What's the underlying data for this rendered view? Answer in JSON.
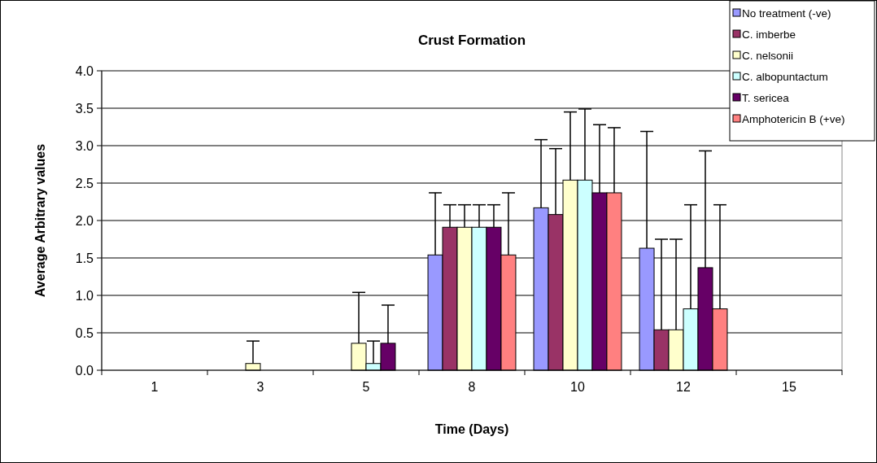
{
  "chart_data": {
    "type": "bar",
    "title": "Crust Formation",
    "xlabel": "Time (Days)",
    "ylabel": "Average Arbitrary values",
    "categories": [
      "1",
      "3",
      "5",
      "8",
      "10",
      "12",
      "15"
    ],
    "ylim": [
      0,
      4
    ],
    "yticks": [
      {
        "value": 0,
        "label": "0.0"
      },
      {
        "value": 0.5,
        "label": "0.5"
      },
      {
        "value": 1,
        "label": "1.0"
      },
      {
        "value": 1.5,
        "label": "1.5"
      },
      {
        "value": 2,
        "label": "2.0"
      },
      {
        "value": 2.5,
        "label": "2.5"
      },
      {
        "value": 3,
        "label": "3.0"
      },
      {
        "value": 3.5,
        "label": "3.5"
      },
      {
        "value": 4,
        "label": "4.0"
      }
    ],
    "grid": "y",
    "legend": "top right",
    "series": [
      {
        "name": "No treatment (-ve)",
        "color": "#9999ff",
        "values": [
          0,
          0,
          0,
          1.54,
          2.17,
          1.63,
          0
        ],
        "errors": [
          null,
          null,
          null,
          [
            1.54,
            2.37
          ],
          [
            2.17,
            3.08
          ],
          [
            1.63,
            3.19
          ],
          null
        ]
      },
      {
        "name": "C. imberbe",
        "color": "#993366",
        "values": [
          0,
          0,
          0,
          1.91,
          2.08,
          0.54,
          0
        ],
        "errors": [
          null,
          null,
          null,
          [
            1.91,
            2.21
          ],
          [
            2.08,
            2.96
          ],
          [
            0.54,
            1.75
          ],
          null
        ]
      },
      {
        "name": "C. nelsonii",
        "color": "#ffffcc",
        "values": [
          0,
          0.09,
          0.36,
          1.91,
          2.54,
          0.54,
          0
        ],
        "errors": [
          null,
          [
            0.09,
            0.39
          ],
          [
            0.36,
            1.04
          ],
          [
            1.91,
            2.21
          ],
          [
            2.54,
            3.45
          ],
          [
            0.54,
            1.75
          ],
          null
        ]
      },
      {
        "name": "C. albopuntactum",
        "color": "#ccffff",
        "values": [
          0,
          0,
          0.09,
          1.91,
          2.54,
          0.82,
          0
        ],
        "errors": [
          null,
          null,
          [
            0.09,
            0.39
          ],
          [
            1.91,
            2.21
          ],
          [
            2.54,
            3.49
          ],
          [
            0.82,
            2.21
          ],
          null
        ]
      },
      {
        "name": "T. sericea",
        "color": "#660066",
        "values": [
          0,
          0,
          0.36,
          1.91,
          2.37,
          1.37,
          0
        ],
        "errors": [
          null,
          null,
          [
            0.36,
            0.87
          ],
          [
            1.91,
            2.21
          ],
          [
            2.37,
            3.28
          ],
          [
            1.37,
            2.93
          ],
          null
        ]
      },
      {
        "name": "Amphotericin B (+ve)",
        "color": "#ff8080",
        "values": [
          0,
          0,
          0,
          1.54,
          2.37,
          0.82,
          0
        ],
        "errors": [
          null,
          null,
          null,
          [
            1.54,
            2.37
          ],
          [
            2.37,
            3.24
          ],
          [
            0.82,
            2.21
          ],
          null
        ]
      }
    ]
  }
}
